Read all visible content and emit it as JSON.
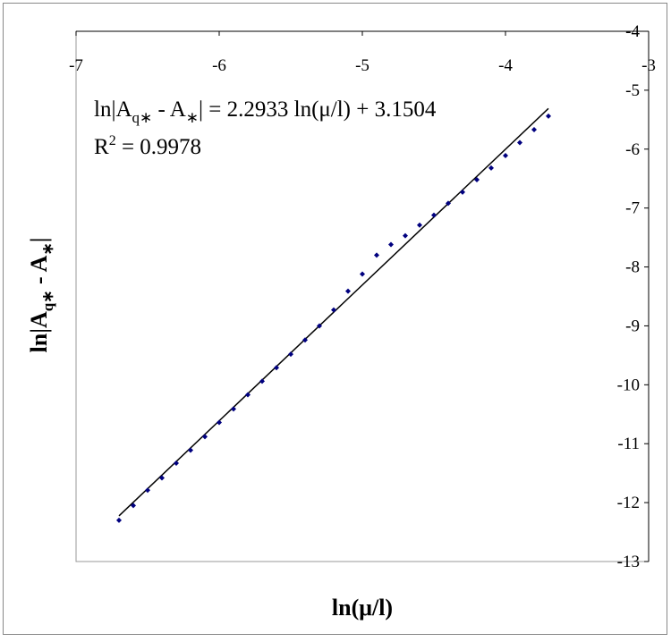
{
  "chart_data": {
    "type": "scatter",
    "equation": [
      "ln|A",
      "q∗",
      " - A",
      "∗",
      "| = 2.2933 ln(μ/l) + 3.1504"
    ],
    "r_squared": [
      "R",
      "2",
      " = 0.9978"
    ],
    "x_label": "ln(μ/l)",
    "y_label": [
      "ln|A",
      "q∗",
      " - A",
      "∗",
      "|"
    ],
    "xlim": [
      -7,
      -3
    ],
    "xticks": [
      -7,
      -6,
      -5,
      -4,
      -3
    ],
    "ylim": [
      -13,
      -4
    ],
    "yticks": [
      -13,
      -12,
      -11,
      -10,
      -9,
      -8,
      -7,
      -6,
      -5,
      -4
    ],
    "series": [
      {
        "color": "#00007f",
        "trendline_color": "#000000",
        "x": [
          -6.7,
          -6.6,
          -6.5,
          -6.4,
          -6.3,
          -6.2,
          -6.1,
          -6.0,
          -5.9,
          -5.8,
          -5.7,
          -5.6,
          -5.5,
          -5.4,
          -5.3,
          -5.2,
          -5.1,
          -5.0,
          -4.9,
          -4.8,
          -4.7,
          -4.6,
          -4.5,
          -4.4,
          -4.3,
          -4.2,
          -4.1,
          -4.0,
          -3.9,
          -3.8,
          -3.7
        ],
        "values": [
          -12.3,
          -12.05,
          -11.79,
          -11.58,
          -11.33,
          -11.11,
          -10.88,
          -10.64,
          -10.41,
          -10.17,
          -9.94,
          -9.71,
          -9.48,
          -9.24,
          -9.0,
          -8.73,
          -8.41,
          -8.12,
          -7.8,
          -7.62,
          -7.47,
          -7.29,
          -7.12,
          -6.92,
          -6.73,
          -6.52,
          -6.32,
          -6.11,
          -5.89,
          -5.67,
          -5.44
        ]
      }
    ]
  }
}
